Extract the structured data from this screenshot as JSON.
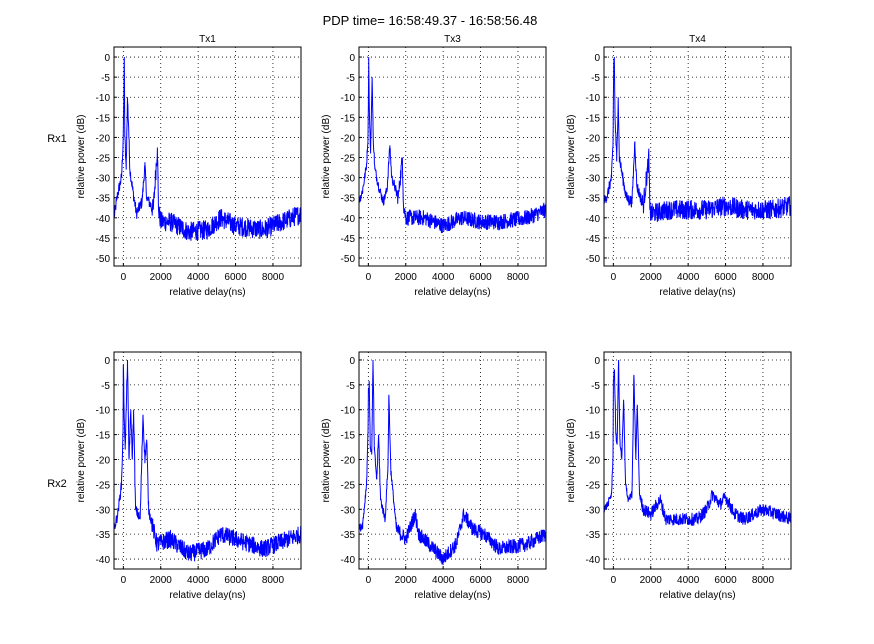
{
  "chart_data": {
    "type": "line",
    "title": "PDP time= 16:58:49.37 - 16:58:56.48",
    "row_labels": [
      "Rx1",
      "Rx2"
    ],
    "line_color": "#0000ff",
    "grid": true,
    "subplots": [
      {
        "row": 0,
        "col": 0,
        "title": "Tx1",
        "xlabel": "relative delay(ns)",
        "ylabel": "relative power (dB)",
        "xlim": [
          -500,
          9500
        ],
        "ylim": [
          -52,
          2.5
        ],
        "xticks": [
          0,
          2000,
          4000,
          6000,
          8000
        ],
        "yticks": [
          0,
          -5,
          -10,
          -15,
          -20,
          -25,
          -30,
          -35,
          -40,
          -45,
          -50
        ],
        "noise_db": 2.5,
        "points": [
          [
            -500,
            -40
          ],
          [
            -300,
            -34
          ],
          [
            -100,
            -30
          ],
          [
            -20,
            -22
          ],
          [
            20,
            -13
          ],
          [
            50,
            0
          ],
          [
            80,
            -20
          ],
          [
            150,
            -28
          ],
          [
            220,
            -10
          ],
          [
            280,
            -17
          ],
          [
            350,
            -28
          ],
          [
            500,
            -33
          ],
          [
            700,
            -39
          ],
          [
            1000,
            -36
          ],
          [
            1150,
            -27
          ],
          [
            1250,
            -35
          ],
          [
            1600,
            -38
          ],
          [
            1820,
            -22.5
          ],
          [
            1880,
            -38
          ],
          [
            2000,
            -41
          ],
          [
            2500,
            -41
          ],
          [
            3500,
            -43.5
          ],
          [
            4500,
            -43
          ],
          [
            5200,
            -40
          ],
          [
            6000,
            -42
          ],
          [
            7500,
            -43
          ],
          [
            9500,
            -39
          ]
        ]
      },
      {
        "row": 0,
        "col": 1,
        "title": "Tx3",
        "xlabel": "relative delay(ns)",
        "ylabel": "relative power (dB)",
        "xlim": [
          -500,
          9500
        ],
        "ylim": [
          -52,
          2.5
        ],
        "xticks": [
          0,
          2000,
          4000,
          6000,
          8000
        ],
        "yticks": [
          0,
          -5,
          -10,
          -15,
          -20,
          -25,
          -30,
          -35,
          -40,
          -45,
          -50
        ],
        "noise_db": 2,
        "points": [
          [
            -500,
            -36
          ],
          [
            -300,
            -33
          ],
          [
            -100,
            -27
          ],
          [
            -20,
            -20
          ],
          [
            0,
            -12
          ],
          [
            20,
            0
          ],
          [
            60,
            -15
          ],
          [
            120,
            -24
          ],
          [
            200,
            -5
          ],
          [
            260,
            -20
          ],
          [
            350,
            -28
          ],
          [
            600,
            -33
          ],
          [
            800,
            -36
          ],
          [
            1000,
            -33
          ],
          [
            1150,
            -22
          ],
          [
            1250,
            -30
          ],
          [
            1600,
            -35
          ],
          [
            1820,
            -25
          ],
          [
            1880,
            -37
          ],
          [
            2000,
            -40
          ],
          [
            3000,
            -40
          ],
          [
            4000,
            -42
          ],
          [
            5000,
            -40
          ],
          [
            6000,
            -41
          ],
          [
            7000,
            -41
          ],
          [
            8500,
            -40
          ],
          [
            9500,
            -38
          ]
        ]
      },
      {
        "row": 0,
        "col": 2,
        "title": "Tx4",
        "xlabel": "relative delay(ns)",
        "ylabel": "relative power (dB)",
        "xlim": [
          -500,
          9500
        ],
        "ylim": [
          -52,
          2.5
        ],
        "xticks": [
          0,
          2000,
          4000,
          6000,
          8000
        ],
        "yticks": [
          0,
          -5,
          -10,
          -15,
          -20,
          -25,
          -30,
          -35,
          -40,
          -45,
          -50
        ],
        "noise_db": 2.5,
        "points": [
          [
            -500,
            -36
          ],
          [
            -300,
            -34
          ],
          [
            -100,
            -30
          ],
          [
            -20,
            -22
          ],
          [
            20,
            -2
          ],
          [
            50,
            0
          ],
          [
            90,
            -15
          ],
          [
            180,
            -26
          ],
          [
            260,
            -10
          ],
          [
            320,
            -25
          ],
          [
            500,
            -30
          ],
          [
            700,
            -35
          ],
          [
            1000,
            -36
          ],
          [
            1150,
            -21
          ],
          [
            1250,
            -32
          ],
          [
            1600,
            -37
          ],
          [
            1900,
            -25
          ],
          [
            1950,
            -38
          ],
          [
            2000,
            -39
          ],
          [
            3000,
            -38
          ],
          [
            4000,
            -38
          ],
          [
            5000,
            -38
          ],
          [
            6000,
            -37
          ],
          [
            7000,
            -38
          ],
          [
            8500,
            -38
          ],
          [
            9500,
            -37
          ]
        ]
      },
      {
        "row": 1,
        "col": 0,
        "title": "",
        "xlabel": "relative delay(ns)",
        "ylabel": "relative power (dB)",
        "xlim": [
          -500,
          9500
        ],
        "ylim": [
          -42,
          1.6
        ],
        "xticks": [
          0,
          2000,
          4000,
          6000,
          8000
        ],
        "yticks": [
          0,
          -5,
          -10,
          -15,
          -20,
          -25,
          -30,
          -35,
          -40
        ],
        "noise_db": 1.8,
        "points": [
          [
            -500,
            -34
          ],
          [
            -300,
            -31
          ],
          [
            -100,
            -25
          ],
          [
            -20,
            -15
          ],
          [
            0,
            -1
          ],
          [
            40,
            -10
          ],
          [
            100,
            -18
          ],
          [
            220,
            0
          ],
          [
            300,
            -20
          ],
          [
            400,
            -10
          ],
          [
            480,
            -20
          ],
          [
            550,
            -10
          ],
          [
            650,
            -30
          ],
          [
            900,
            -32
          ],
          [
            1050,
            -11
          ],
          [
            1150,
            -20
          ],
          [
            1250,
            -16
          ],
          [
            1350,
            -30
          ],
          [
            1600,
            -34
          ],
          [
            1800,
            -37
          ],
          [
            2500,
            -36
          ],
          [
            3500,
            -39
          ],
          [
            4500,
            -38
          ],
          [
            5200,
            -35
          ],
          [
            6000,
            -36
          ],
          [
            7500,
            -38
          ],
          [
            9500,
            -35
          ]
        ]
      },
      {
        "row": 1,
        "col": 1,
        "title": "",
        "xlabel": "relative delay(ns)",
        "ylabel": "relative power (dB)",
        "xlim": [
          -500,
          9500
        ],
        "ylim": [
          -42,
          1.6
        ],
        "xticks": [
          0,
          2000,
          4000,
          6000,
          8000
        ],
        "yticks": [
          0,
          -5,
          -10,
          -15,
          -20,
          -25,
          -30,
          -35,
          -40
        ],
        "noise_db": 1.5,
        "points": [
          [
            -500,
            -34
          ],
          [
            -300,
            -33
          ],
          [
            -100,
            -25
          ],
          [
            -20,
            -15
          ],
          [
            0,
            -6
          ],
          [
            50,
            -5
          ],
          [
            100,
            -17
          ],
          [
            180,
            -19
          ],
          [
            250,
            0
          ],
          [
            320,
            -18
          ],
          [
            450,
            -24
          ],
          [
            550,
            -15
          ],
          [
            650,
            -28
          ],
          [
            900,
            -32
          ],
          [
            1050,
            -21
          ],
          [
            1100,
            -7
          ],
          [
            1200,
            -22
          ],
          [
            1300,
            -26
          ],
          [
            1500,
            -34
          ],
          [
            2000,
            -36
          ],
          [
            2500,
            -31
          ],
          [
            2700,
            -35
          ],
          [
            3500,
            -38
          ],
          [
            4000,
            -40
          ],
          [
            4700,
            -37
          ],
          [
            5100,
            -31
          ],
          [
            5600,
            -34
          ],
          [
            6200,
            -35
          ],
          [
            7000,
            -38
          ],
          [
            8500,
            -37
          ],
          [
            9500,
            -35
          ]
        ]
      },
      {
        "row": 1,
        "col": 2,
        "title": "",
        "xlabel": "relative delay(ns)",
        "ylabel": "relative power (dB)",
        "xlim": [
          -500,
          9500
        ],
        "ylim": [
          -42,
          1.6
        ],
        "xticks": [
          0,
          2000,
          4000,
          6000,
          8000
        ],
        "yticks": [
          0,
          -5,
          -10,
          -15,
          -20,
          -25,
          -30,
          -35,
          -40
        ],
        "noise_db": 1.3,
        "points": [
          [
            -500,
            -30
          ],
          [
            -300,
            -29
          ],
          [
            -100,
            -27
          ],
          [
            -20,
            -20
          ],
          [
            0,
            -4
          ],
          [
            60,
            -2
          ],
          [
            130,
            -15
          ],
          [
            200,
            -17
          ],
          [
            280,
            0
          ],
          [
            350,
            -16
          ],
          [
            450,
            -20
          ],
          [
            550,
            -8
          ],
          [
            650,
            -25
          ],
          [
            800,
            -28
          ],
          [
            1000,
            -27
          ],
          [
            1100,
            -3
          ],
          [
            1200,
            -20
          ],
          [
            1280,
            -9
          ],
          [
            1400,
            -27
          ],
          [
            1600,
            -30
          ],
          [
            2000,
            -31
          ],
          [
            2500,
            -28
          ],
          [
            2800,
            -32
          ],
          [
            3500,
            -32
          ],
          [
            4500,
            -32
          ],
          [
            5000,
            -30
          ],
          [
            5300,
            -27
          ],
          [
            5700,
            -29
          ],
          [
            6000,
            -27.5
          ],
          [
            6500,
            -31
          ],
          [
            7000,
            -32
          ],
          [
            8000,
            -30
          ],
          [
            9500,
            -32
          ]
        ]
      }
    ]
  }
}
